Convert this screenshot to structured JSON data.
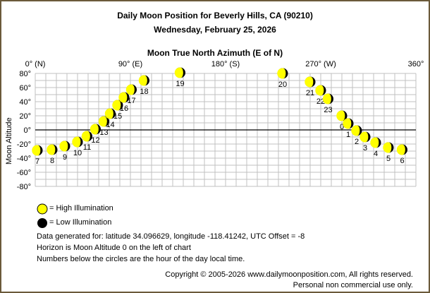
{
  "chart_data": {
    "type": "scatter",
    "title": "Daily Moon Position for Beverly Hills, CA (90210)",
    "subtitle": "Wednesday, February 25, 2026",
    "xlabel": "Moon True North Azimuth (E of N)",
    "ylabel": "Moon Altitude",
    "xlim": [
      0,
      360
    ],
    "ylim": [
      -80,
      80
    ],
    "grid": true,
    "xticks": [
      {
        "v": 0,
        "label": "0° (N)"
      },
      {
        "v": 90,
        "label": "90° (E)"
      },
      {
        "v": 180,
        "label": "180° (S)"
      },
      {
        "v": 270,
        "label": "270° (W)"
      },
      {
        "v": 360,
        "label": "360°"
      }
    ],
    "yticks": [
      {
        "v": 80,
        "label": "80°"
      },
      {
        "v": 60,
        "label": "60°"
      },
      {
        "v": 40,
        "label": "40°"
      },
      {
        "v": 20,
        "label": "20°"
      },
      {
        "v": 0,
        "label": "0°"
      },
      {
        "v": -20,
        "label": "-20°"
      },
      {
        "v": -40,
        "label": "-40°"
      },
      {
        "v": -60,
        "label": "-60°"
      },
      {
        "v": -80,
        "label": "-80°"
      }
    ],
    "points": [
      {
        "hour": "0",
        "az": 290,
        "alt": 20
      },
      {
        "hour": "1",
        "az": 296,
        "alt": 9
      },
      {
        "hour": "2",
        "az": 304,
        "alt": -1
      },
      {
        "hour": "3",
        "az": 312,
        "alt": -10
      },
      {
        "hour": "4",
        "az": 322,
        "alt": -18
      },
      {
        "hour": "5",
        "az": 334,
        "alt": -25
      },
      {
        "hour": "6",
        "az": 347,
        "alt": -28
      },
      {
        "hour": "7",
        "az": 2,
        "alt": -29
      },
      {
        "hour": "8",
        "az": 16,
        "alt": -28
      },
      {
        "hour": "9",
        "az": 28,
        "alt": -23
      },
      {
        "hour": "10",
        "az": 40,
        "alt": -17
      },
      {
        "hour": "11",
        "az": 49,
        "alt": -9
      },
      {
        "hour": "12",
        "az": 57,
        "alt": 1
      },
      {
        "hour": "13",
        "az": 65,
        "alt": 12
      },
      {
        "hour": "14",
        "az": 71,
        "alt": 23
      },
      {
        "hour": "15",
        "az": 78,
        "alt": 35
      },
      {
        "hour": "16",
        "az": 84,
        "alt": 46
      },
      {
        "hour": "17",
        "az": 91,
        "alt": 57
      },
      {
        "hour": "18",
        "az": 103,
        "alt": 70
      },
      {
        "hour": "19",
        "az": 137,
        "alt": 81
      },
      {
        "hour": "20",
        "az": 234,
        "alt": 80
      },
      {
        "hour": "21",
        "az": 260,
        "alt": 68
      },
      {
        "hour": "22",
        "az": 270,
        "alt": 56
      },
      {
        "hour": "23",
        "az": 277,
        "alt": 44
      }
    ],
    "colors": {
      "high": "#ffff00",
      "low": "#000000",
      "grid": "#c0c0c0",
      "horizon": "#000000"
    }
  },
  "legend": {
    "high": "= High Illumination",
    "low": "= Low Illumination"
  },
  "notes": [
    "Data generated for: latitude 34.096629, longitude -118.41242, UTC Offset = -8",
    "Horizon is Moon Altitude 0 on the left of chart",
    "Numbers below the circles are the hour of the day local time."
  ],
  "footer": {
    "copyright": "Copyright © 2005-2026 www.dailymoonposition.com, All rights reserved.",
    "usage": "Personal non commercial use only."
  }
}
